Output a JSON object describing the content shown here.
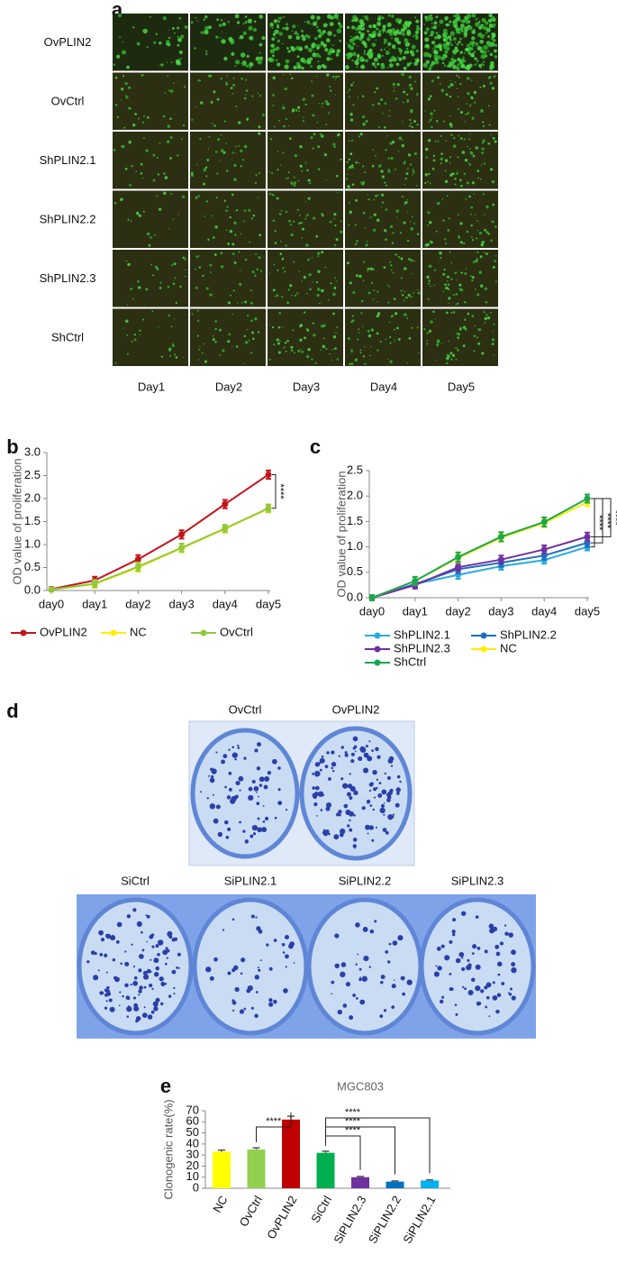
{
  "panel_a": {
    "letter": "a",
    "rows": [
      "OvPLIN2",
      "OvCtrl",
      "ShPLIN2.1",
      "ShPLIN2.2",
      "ShPLIN2.3",
      "ShCtrl"
    ],
    "columns": [
      "Day1",
      "Day2",
      "Day3",
      "Day4",
      "Day5"
    ]
  },
  "panel_d": {
    "letter": "d",
    "top_labels": [
      "OvCtrl",
      "OvPLIN2"
    ],
    "bottom_labels": [
      "SiCtrl",
      "SiPLIN2.1",
      "SiPLIN2.2",
      "SiPLIN2.3"
    ]
  },
  "chart_data": [
    {
      "type": "line",
      "label": "b",
      "y_label": "OD value of proliferation",
      "categories": [
        "day0",
        "day1",
        "day2",
        "day3",
        "day4",
        "day5"
      ],
      "series": [
        {
          "name": "OvPLIN2",
          "color": "#c0161c",
          "values": [
            0.03,
            0.22,
            0.68,
            1.22,
            1.88,
            2.52
          ],
          "errors": [
            0.04,
            0.08,
            0.09,
            0.09,
            0.09,
            0.09
          ]
        },
        {
          "name": "NC",
          "color": "#ffee00",
          "values": [
            0.02,
            0.14,
            0.5,
            0.92,
            1.34,
            1.78
          ],
          "errors": [
            0.04,
            0.08,
            0.09,
            0.09,
            0.08,
            0.08
          ]
        },
        {
          "name": "OvCtrl",
          "color": "#92c83e",
          "values": [
            0.02,
            0.15,
            0.52,
            0.93,
            1.35,
            1.79
          ],
          "errors": [
            0.04,
            0.08,
            0.09,
            0.09,
            0.08,
            0.08
          ]
        }
      ],
      "ylim": [
        0,
        3
      ],
      "yticks": [
        {
          "value": 0,
          "label": "0.0"
        },
        {
          "value": 0.5,
          "label": "0.5"
        },
        {
          "value": 1,
          "label": "1.0"
        },
        {
          "value": 1.5,
          "label": "1.5"
        },
        {
          "value": 2,
          "label": "2.0"
        },
        {
          "value": 2.5,
          "label": "2.5"
        },
        {
          "value": 3,
          "label": "3.0"
        }
      ],
      "annotations": [
        "****"
      ],
      "legend": "bottom"
    },
    {
      "type": "line",
      "label": "c",
      "y_label": "OD value of proliferation",
      "categories": [
        "day0",
        "day1",
        "day2",
        "day3",
        "day4",
        "day5"
      ],
      "series": [
        {
          "name": "ShPLIN2.1",
          "color": "#29abe2",
          "values": [
            0,
            0.27,
            0.45,
            0.62,
            0.74,
            1.0
          ],
          "errors": [
            0.05,
            0.07,
            0.08,
            0.07,
            0.07,
            0.07
          ]
        },
        {
          "name": "ShPLIN2.2",
          "color": "#1f6fbf",
          "values": [
            0,
            0.27,
            0.56,
            0.69,
            0.83,
            1.08
          ],
          "errors": [
            0.05,
            0.07,
            0.08,
            0.08,
            0.08,
            0.08
          ]
        },
        {
          "name": "ShPLIN2.3",
          "color": "#7030a0",
          "values": [
            0,
            0.25,
            0.6,
            0.75,
            0.95,
            1.2
          ],
          "errors": [
            0.05,
            0.07,
            0.08,
            0.08,
            0.08,
            0.08
          ]
        },
        {
          "name": "NC",
          "color": "#ffee00",
          "values": [
            0,
            0.33,
            0.78,
            1.18,
            1.47,
            1.88
          ],
          "errors": [
            0.05,
            0.08,
            0.08,
            0.08,
            0.08,
            0.08
          ]
        },
        {
          "name": "ShCtrl",
          "color": "#1aa750",
          "values": [
            0,
            0.33,
            0.8,
            1.2,
            1.49,
            1.95
          ],
          "errors": [
            0.05,
            0.08,
            0.09,
            0.09,
            0.09,
            0.08
          ]
        }
      ],
      "ylim": [
        0,
        2.5
      ],
      "yticks": [
        {
          "value": 0,
          "label": "0.0"
        },
        {
          "value": 0.5,
          "label": "0.5"
        },
        {
          "value": 1,
          "label": "1.0"
        },
        {
          "value": 1.5,
          "label": "1.5"
        },
        {
          "value": 2,
          "label": "2.0"
        },
        {
          "value": 2.5,
          "label": "2.5"
        }
      ],
      "annotations": [
        "****",
        "****",
        "****"
      ],
      "legend": "bottom"
    },
    {
      "type": "bar",
      "label": "e",
      "title": "MGC803",
      "y_label": "Clonogenic rate(%)",
      "categories": [
        "NC",
        "OvCtrl",
        "OvPLIN2",
        "SiCtrl",
        "SiPLIN2.3",
        "SiPLIN2.2",
        "SiPLIN2.1"
      ],
      "values": [
        33,
        35,
        62,
        32,
        10,
        6,
        7
      ],
      "errors": [
        1.5,
        1.5,
        3,
        1.5,
        0.7,
        0.6,
        0.6
      ],
      "colors": [
        "#ffff00",
        "#92d050",
        "#c00000",
        "#00b050",
        "#7030a0",
        "#0070c0",
        "#00b0f0"
      ],
      "ylim": [
        0,
        70
      ],
      "yticks": [
        0,
        10,
        20,
        30,
        40,
        50,
        60,
        70
      ],
      "annotations": [
        "****",
        "****",
        "****",
        "****"
      ]
    }
  ]
}
